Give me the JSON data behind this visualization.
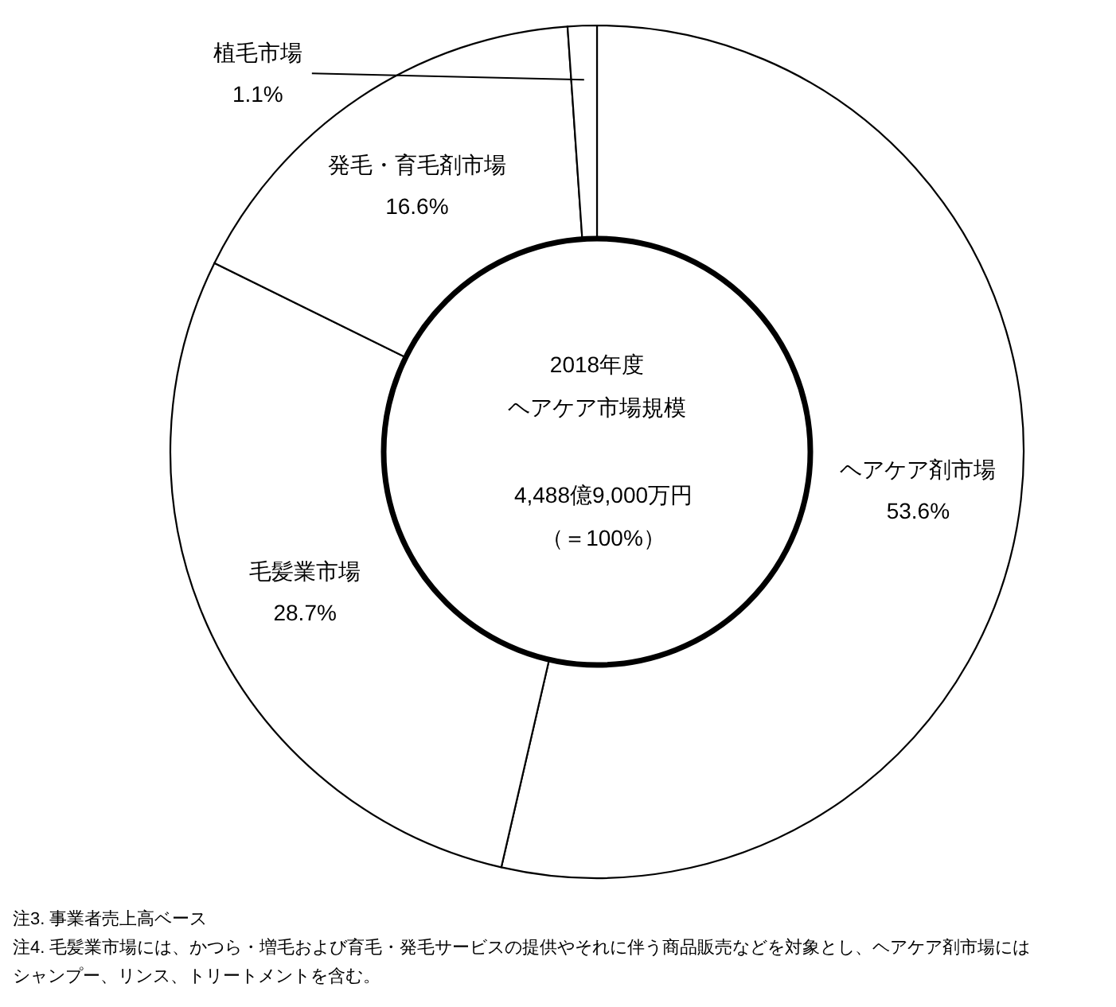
{
  "chart_data": {
    "type": "donut",
    "title": "2018年度",
    "subtitle": "ヘアケア市場規模",
    "categories": [
      "ヘアケア剤市場",
      "毛髪業市場",
      "発毛・育毛剤市場",
      "植毛市場"
    ],
    "values": [
      53.6,
      28.7,
      16.6,
      1.1
    ],
    "colors": [
      "#ffffff",
      "#ffffff",
      "#ffffff",
      "#ffffff"
    ],
    "value_labels": [
      "53.6%",
      "28.7%",
      "16.6%",
      "1.1%"
    ],
    "annotations": [
      "4,488億9,000万円",
      "（＝100%）",
      "注3.  事業者売上高ベース",
      "注4.  毛髪業市場には、かつら・増毛および育毛・発毛サービスの提供やそれに伴う商品販売などを対象とし、ヘアケア剤市場にはシャンプー、リンス、トリートメントを含む。"
    ]
  }
}
